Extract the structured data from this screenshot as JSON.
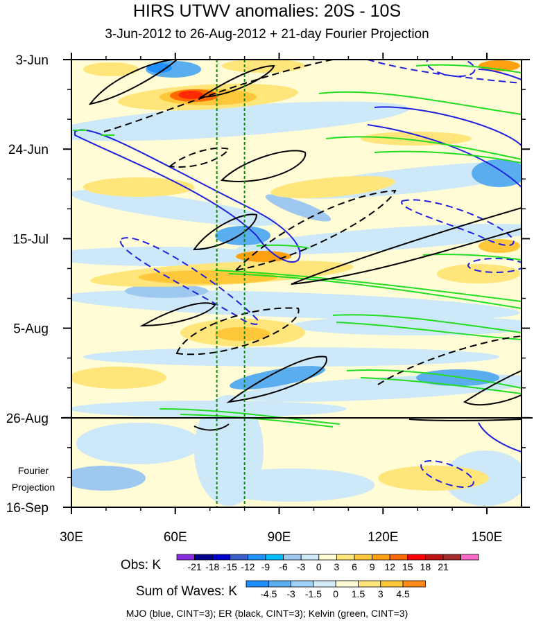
{
  "chart_data": {
    "type": "heatmap",
    "title": "HIRS UTWV anomalies: 20S - 10S",
    "subtitle": "3-Jun-2012 to 26-Aug-2012 + 21-day Fourier Projection",
    "x_axis": {
      "ticks": [
        "30E",
        "60E",
        "90E",
        "120E",
        "150E"
      ],
      "range": [
        30,
        160
      ]
    },
    "y_axis": {
      "ticks": [
        "3-Jun",
        "24-Jun",
        "15-Jul",
        "5-Aug",
        "26-Aug",
        "16-Sep"
      ]
    },
    "projection_label": [
      "Fourier",
      "Projection"
    ],
    "obs_colorbar": {
      "label": "Obs: K",
      "levels": [
        "-21",
        "-18",
        "-15",
        "-12",
        "-9",
        "-6",
        "-3",
        "0",
        "3",
        "6",
        "9",
        "12",
        "15",
        "18",
        "21"
      ],
      "colors": [
        "#8a2be2",
        "#00008b",
        "#0000cd",
        "#3a5fcd",
        "#1e90ff",
        "#00bfff",
        "#9fc8f0",
        "#cde8f8",
        "#fffcd6",
        "#ffe57a",
        "#ffc83a",
        "#ffa010",
        "#ff6a00",
        "#ff0000",
        "#c01010",
        "#a52a2a",
        "#ff69c8"
      ]
    },
    "waves_colorbar": {
      "label": "Sum of Waves: K",
      "levels": [
        "-4.5",
        "-3",
        "-1.5",
        "0",
        "1.5",
        "3",
        "4.5"
      ],
      "colors": [
        "#1e90ff",
        "#5aaef0",
        "#9fd0f5",
        "#d4ecfa",
        "#fffcd6",
        "#ffe57a",
        "#ffc83a",
        "#ff8c1a"
      ]
    },
    "footnote": "MJO (blue, CINT=3); ER (black, CINT=3); Kelvin (green, CINT=3)",
    "reference_lines_lon": [
      72,
      80
    ]
  }
}
